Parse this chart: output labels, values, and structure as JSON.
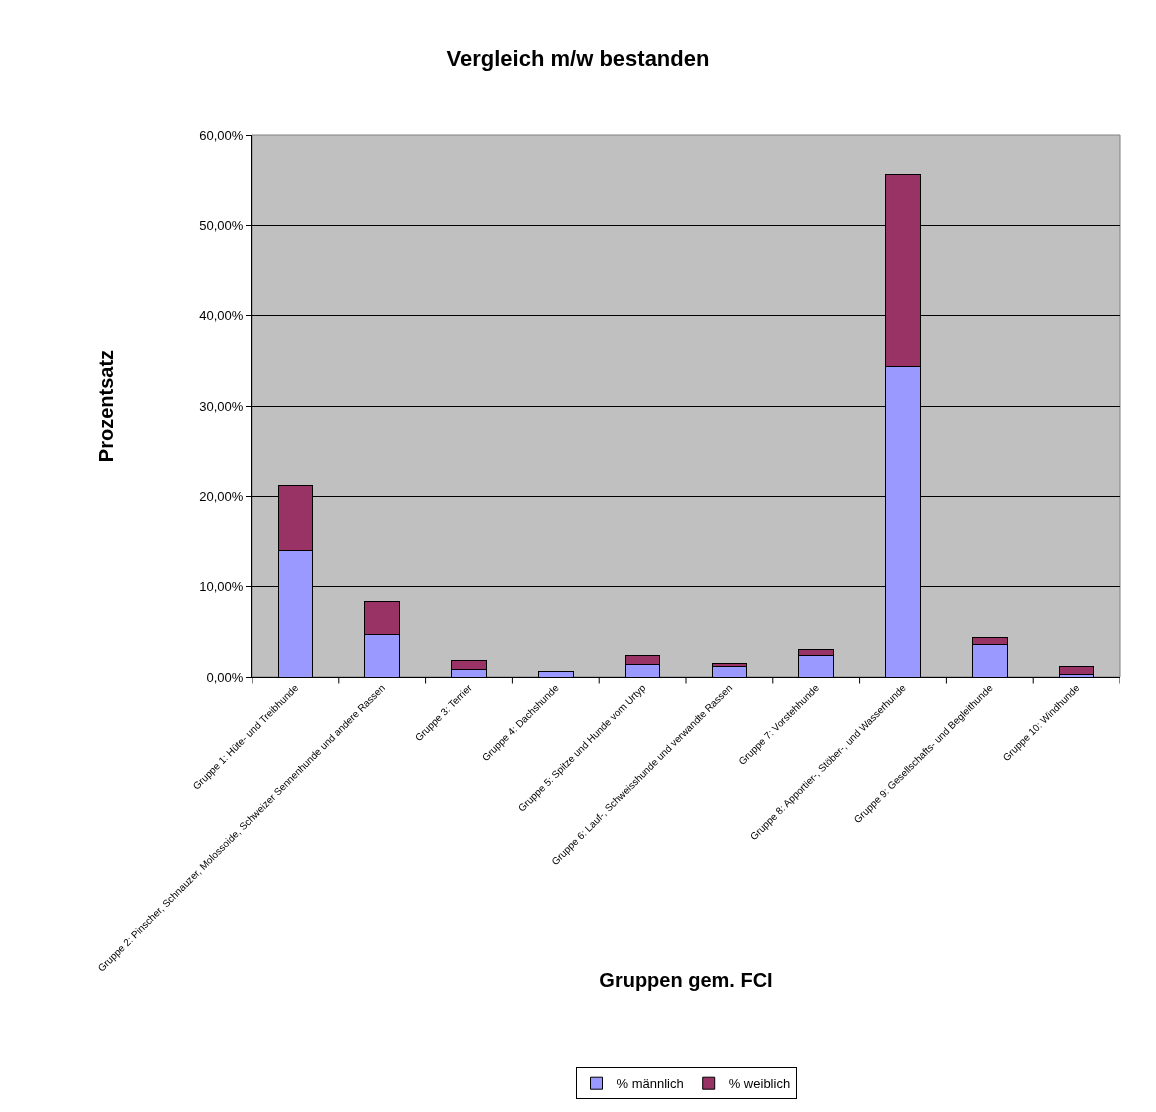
{
  "chart_data": {
    "type": "bar",
    "title": "Vergleich m/w bestanden",
    "xlabel": "Gruppen gem. FCI",
    "ylabel": "Prozentsatz",
    "categories": [
      "Gruppe 1: Hüte- und Treibhunde",
      "Gruppe 2: Pinscher, Schnauzer, Molossoide, Schweizer Sennenhunde und andere Rassen",
      "Gruppe 3: Terrier",
      "Gruppe 4: Dachshunde",
      "Gruppe 5: Spitze und Hunde vom Urtyp",
      "Gruppe 6: Lauf-, Schweisshunde und verwandte Rassen",
      "Gruppe 7: Vorstehhunde",
      "Gruppe 8: Apportier-, Stöber-, und Wasserhunde",
      "Gruppe 9: Gesellschafts- und Begleithunde",
      "Gruppe 10: Windhunde"
    ],
    "series": [
      {
        "name": "% männlich",
        "color": "#9999ff",
        "values": [
          14.0,
          4.7,
          0.8,
          0.6,
          1.4,
          1.2,
          2.4,
          34.4,
          3.6,
          0.3
        ]
      },
      {
        "name": "% weiblich",
        "color": "#993366",
        "values": [
          7.2,
          3.7,
          1.0,
          null,
          1.0,
          0.3,
          0.6,
          21.2,
          0.8,
          0.9
        ]
      }
    ],
    "stacked": true,
    "ylim": [
      0,
      60
    ],
    "yticks": [
      {
        "value": 0,
        "label": "0,00%"
      },
      {
        "value": 10,
        "label": "10,00%"
      },
      {
        "value": 20,
        "label": "20,00%"
      },
      {
        "value": 30,
        "label": "30,00%"
      },
      {
        "value": 40,
        "label": "40,00%"
      },
      {
        "value": 50,
        "label": "50,00%"
      },
      {
        "value": 60,
        "label": "60,00%"
      }
    ],
    "grid": "y",
    "legend": "bottom"
  }
}
